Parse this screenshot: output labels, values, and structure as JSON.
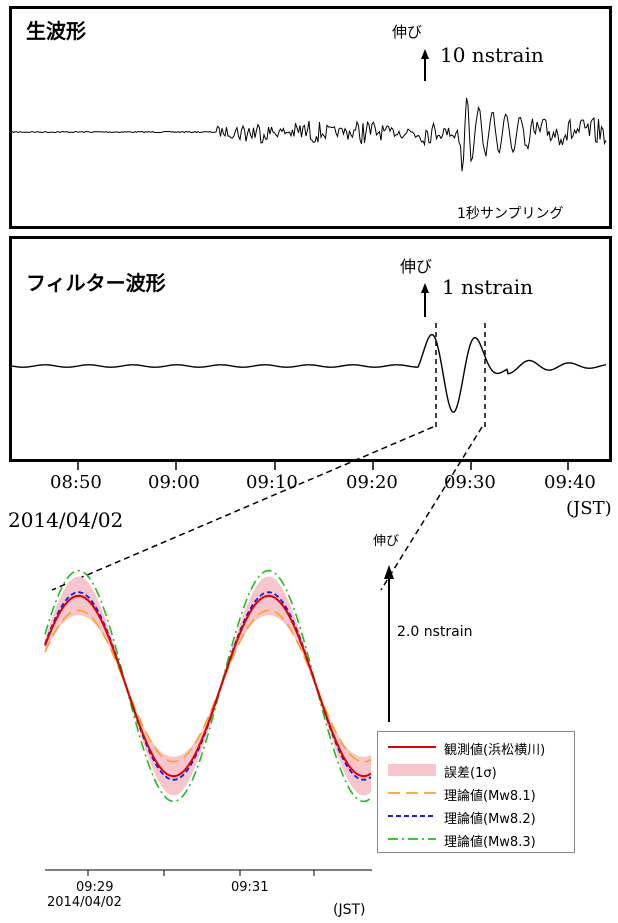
{
  "top_panels": {
    "raw": {
      "title": "生波形",
      "scale_label": "伸び",
      "scale_value": "10 nstrain",
      "sampling_note": "1秒サンプリング"
    },
    "filtered": {
      "title": "フィルター波形",
      "scale_label": "伸び",
      "scale_value": "1 nstrain"
    }
  },
  "time_axis": {
    "ticks": [
      "08:50",
      "09:00",
      "09:10",
      "09:20",
      "09:30",
      "09:40"
    ],
    "date": "2014/04/02",
    "unit": "(JST)"
  },
  "detail": {
    "scale_label": "伸び",
    "scale_value": "2.0 nstrain",
    "x_ticks": [
      "09:29",
      "09:31"
    ],
    "x_date": "2014/04/02",
    "x_unit": "(JST)"
  },
  "legend": [
    {
      "label": "観測値(浜松横川)",
      "color": "#e00000",
      "style": "solid"
    },
    {
      "label": "誤差(1σ)",
      "color": "#f7c6cc",
      "style": "band"
    },
    {
      "label": "理論値(Mw8.1)",
      "color": "#f5a623",
      "style": "long-dash"
    },
    {
      "label": "理論値(Mw8.2)",
      "color": "#1a1ae6",
      "style": "dash"
    },
    {
      "label": "理論値(Mw8.3)",
      "color": "#22bb22",
      "style": "dash-dot"
    }
  ],
  "chart_data": [
    {
      "type": "line",
      "title": "生波形",
      "x": [
        "08:50",
        "09:00",
        "09:10",
        "09:20",
        "09:30",
        "09:40"
      ],
      "series": [],
      "ylabel": "",
      "grid": false
    },
    {
      "type": "line",
      "title": "フィルター波形",
      "x": [
        "08:50",
        "09:00",
        "09:10",
        "09:20",
        "09:30",
        "09:40"
      ],
      "series": [],
      "grid": false
    },
    {
      "type": "line",
      "x": [
        "09:29",
        "09:31"
      ],
      "series": [
        {
          "name": "観測値(浜松横川)",
          "color": "#e00000"
        },
        {
          "name": "誤差(1σ)",
          "color": "#f7c6cc"
        },
        {
          "name": "理論値(Mw8.1)",
          "color": "#f5a623",
          "amplitude_ratio": 0.85
        },
        {
          "name": "理論値(Mw8.2)",
          "color": "#1a1ae6",
          "amplitude_ratio": 1.05
        },
        {
          "name": "理論値(Mw8.3)",
          "color": "#22bb22",
          "amplitude_ratio": 1.3
        }
      ],
      "legend_position": "bottom-right",
      "grid": false
    }
  ]
}
